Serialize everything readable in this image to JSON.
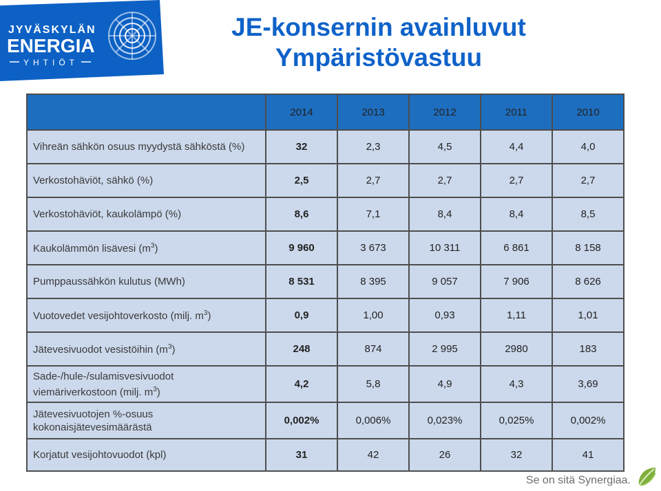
{
  "logo": {
    "line1": "JYVÄSKYLÄN",
    "line2": "ENERGIA",
    "line3": "YHTIÖT",
    "brand_color": "#0d61c4",
    "accent_color": "#2a9fd8"
  },
  "title": {
    "line1": "JE-konsernin avainluvut",
    "line2": "Ympäristövastuu"
  },
  "table": {
    "years": [
      "2014",
      "2013",
      "2012",
      "2011",
      "2010"
    ],
    "rows": [
      {
        "label": "Vihreän sähkön osuus myydystä sähköstä (%)",
        "values": [
          "32",
          "2,3",
          "4,5",
          "4,4",
          "4,0"
        ]
      },
      {
        "label": "Verkostohäviöt, sähkö (%)",
        "values": [
          "2,5",
          "2,7",
          "2,7",
          "2,7",
          "2,7"
        ]
      },
      {
        "label": "Verkostohäviöt, kaukolämpö (%)",
        "values": [
          "8,6",
          "7,1",
          "8,4",
          "8,4",
          "8,5"
        ]
      },
      {
        "label_pre": "Kaukolämmön lisävesi (m",
        "label_sup": "3",
        "label_post": ")",
        "values": [
          "9 960",
          "3 673",
          "10 311",
          "6 861",
          "8 158"
        ]
      },
      {
        "label": "Pumppaussähkön kulutus (MWh)",
        "values": [
          "8 531",
          "8 395",
          "9 057",
          "7 906",
          "8 626"
        ]
      },
      {
        "label_pre": "Vuotovedet vesijohtoverkosto (milj. m",
        "label_sup": "3",
        "label_post": ")",
        "values": [
          "0,9",
          "1,00",
          "0,93",
          "1,11",
          "1,01"
        ]
      },
      {
        "label_pre": "Jätevesivuodot vesistöihin (m",
        "label_sup": "3",
        "label_post": ")",
        "values": [
          "248",
          "874",
          "2 995",
          "2980",
          "183"
        ]
      },
      {
        "label_line1": "Sade-/hule-/sulamisvesivuodot",
        "label_pre": "viemäriverkostoon (milj. m",
        "label_sup": "3",
        "label_post": ")",
        "values": [
          "4,2",
          "5,8",
          "4,9",
          "4,3",
          "3,69"
        ]
      },
      {
        "label_line1": "Jätevesivuotojen %-osuus",
        "label_line2": "kokonaisjätevesimäärästä",
        "values": [
          "0,002%",
          "0,006%",
          "0,023%",
          "0,025%",
          "0,002%"
        ]
      },
      {
        "label": "Korjatut vesijohtovuodot (kpl)",
        "values": [
          "31",
          "42",
          "26",
          "32",
          "41"
        ]
      }
    ]
  },
  "footer": {
    "slogan": "Se on sitä Synergiaa."
  }
}
